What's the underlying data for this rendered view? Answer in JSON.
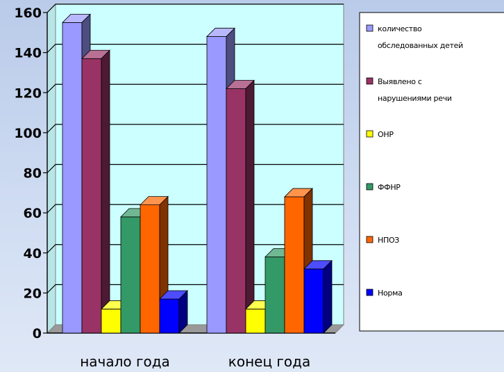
{
  "chart_data": {
    "type": "bar",
    "style": "3d-clustered-column",
    "categories": [
      "начало года",
      "конец года"
    ],
    "ylim": [
      0,
      160
    ],
    "yticks": [
      0,
      20,
      40,
      60,
      80,
      100,
      120,
      140,
      160
    ],
    "grid": true,
    "legend_position": "right",
    "series": [
      {
        "name": "количество обследованных детей",
        "legend_lines": [
          "количество",
          "обследованных детей"
        ],
        "values": [
          155,
          148
        ],
        "color": "#9999ff"
      },
      {
        "name": "Выявлено с нарушениями речи",
        "legend_lines": [
          "Выявлено с",
          "нарушениями речи"
        ],
        "values": [
          137,
          122
        ],
        "color": "#993366"
      },
      {
        "name": "ОНР",
        "legend_lines": [
          "ОНР"
        ],
        "values": [
          12,
          12
        ],
        "color": "#ffff00"
      },
      {
        "name": "ФФНР",
        "legend_lines": [
          "ФФНР"
        ],
        "values": [
          58,
          38
        ],
        "color": "#339966"
      },
      {
        "name": "НПОЗ",
        "legend_lines": [
          "НПОЗ"
        ],
        "values": [
          64,
          68
        ],
        "color": "#ff6600"
      },
      {
        "name": "Норма",
        "legend_lines": [
          "Норма"
        ],
        "values": [
          17,
          32
        ],
        "color": "#0000ff"
      }
    ]
  }
}
